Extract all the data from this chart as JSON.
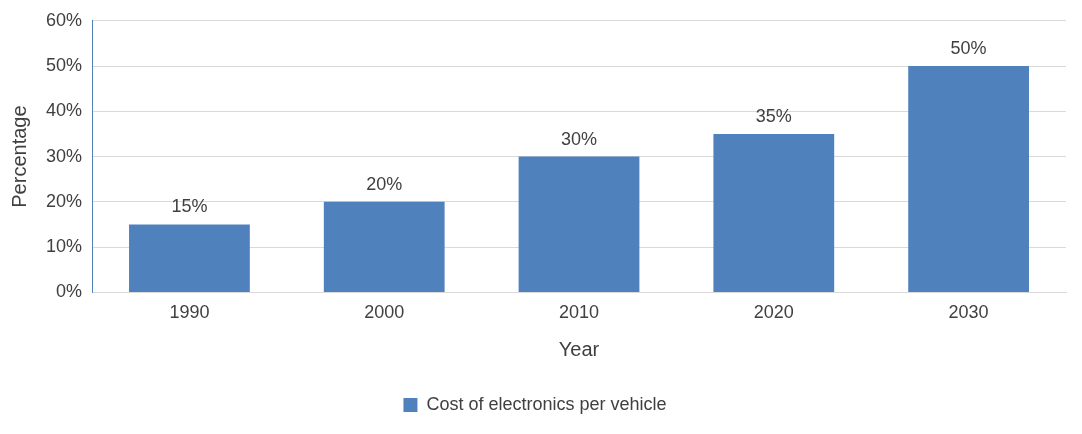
{
  "chart_data": {
    "type": "bar",
    "xlabel": "Year",
    "ylabel": "Percentage",
    "categories": [
      "1990",
      "2000",
      "2010",
      "2020",
      "2030"
    ],
    "series": [
      {
        "name": "Cost of electronics per vehicle",
        "color": "#4f81bd",
        "values": [
          15,
          20,
          30,
          35,
          50
        ],
        "value_labels": [
          "15%",
          "20%",
          "30%",
          "35%",
          "50%"
        ]
      }
    ],
    "ylim": [
      0,
      60
    ],
    "yticks": [
      {
        "value": 0,
        "label": "0%"
      },
      {
        "value": 10,
        "label": "10%"
      },
      {
        "value": 20,
        "label": "20%"
      },
      {
        "value": 30,
        "label": "30%"
      },
      {
        "value": 40,
        "label": "40%"
      },
      {
        "value": 50,
        "label": "50%"
      },
      {
        "value": 60,
        "label": "60%"
      }
    ],
    "grid": "y",
    "legend": "bottom"
  }
}
